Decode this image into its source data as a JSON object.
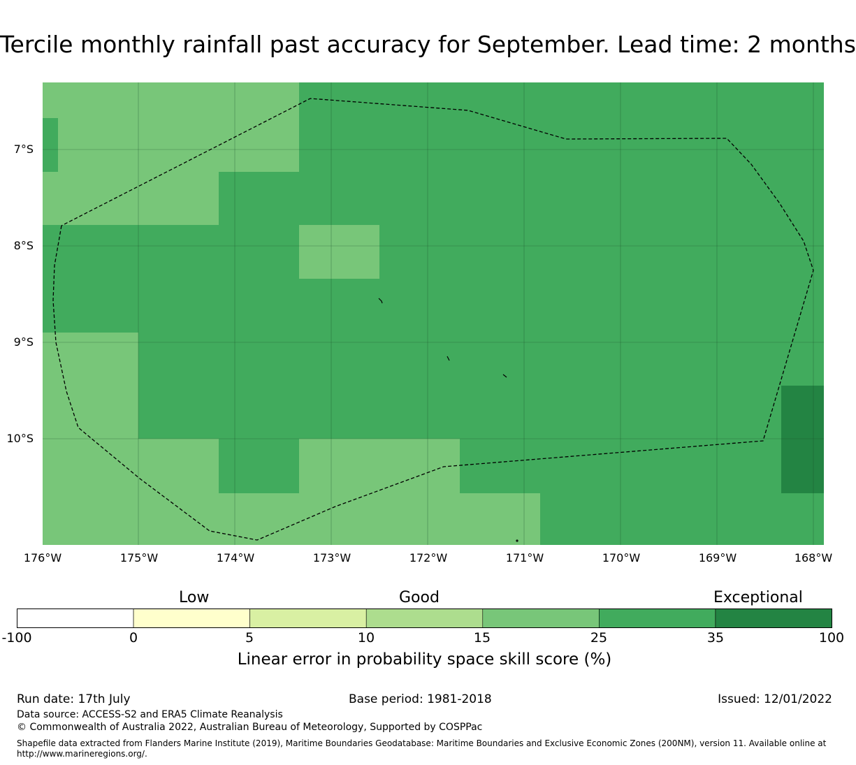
{
  "title": "Tercile monthly rainfall past accuracy for September. Lead time: 2 months",
  "map": {
    "lat_labels": [
      "7°S",
      "8°S",
      "9°S",
      "10°S"
    ],
    "lon_labels": [
      "176°W",
      "175°W",
      "174°W",
      "173°W",
      "172°W",
      "171°W",
      "170°W",
      "169°W",
      "168°W"
    ],
    "cell_colors": {
      "light": "#78c679",
      "medium": "#41ab5d",
      "dark": "#238443"
    },
    "eez_boundary": "dashed black line"
  },
  "colorbar": {
    "category_labels": [
      "Low",
      "Good",
      "Exceptional"
    ],
    "ticks": [
      "-100",
      "0",
      "5",
      "10",
      "15",
      "25",
      "35",
      "100"
    ],
    "colors": [
      "#ffffff",
      "#ffffcc",
      "#d9f0a3",
      "#addd8e",
      "#78c679",
      "#41ab5d",
      "#238443"
    ],
    "title": "Linear error in probability space skill score (%)"
  },
  "footer": {
    "run_date": "Run date: 17th July",
    "base_period": "Base period: 1981-2018",
    "issued": "Issued: 12/01/2022",
    "data_source": "Data source: ACCESS-S2 and ERA5 Climate Reanalysis",
    "copyright": "© Commonwealth of Australia 2022, Australian Bureau of Meteorology, Supported by COSPPac",
    "shapefile_line1": "Shapefile data extracted from Flanders Marine Institute (2019), Maritime Boundaries Geodatabase: Maritime Boundaries and Exclusive Economic Zones (200NM), version 11. Available online at",
    "shapefile_line2": "http://www.marineregions.org/."
  }
}
